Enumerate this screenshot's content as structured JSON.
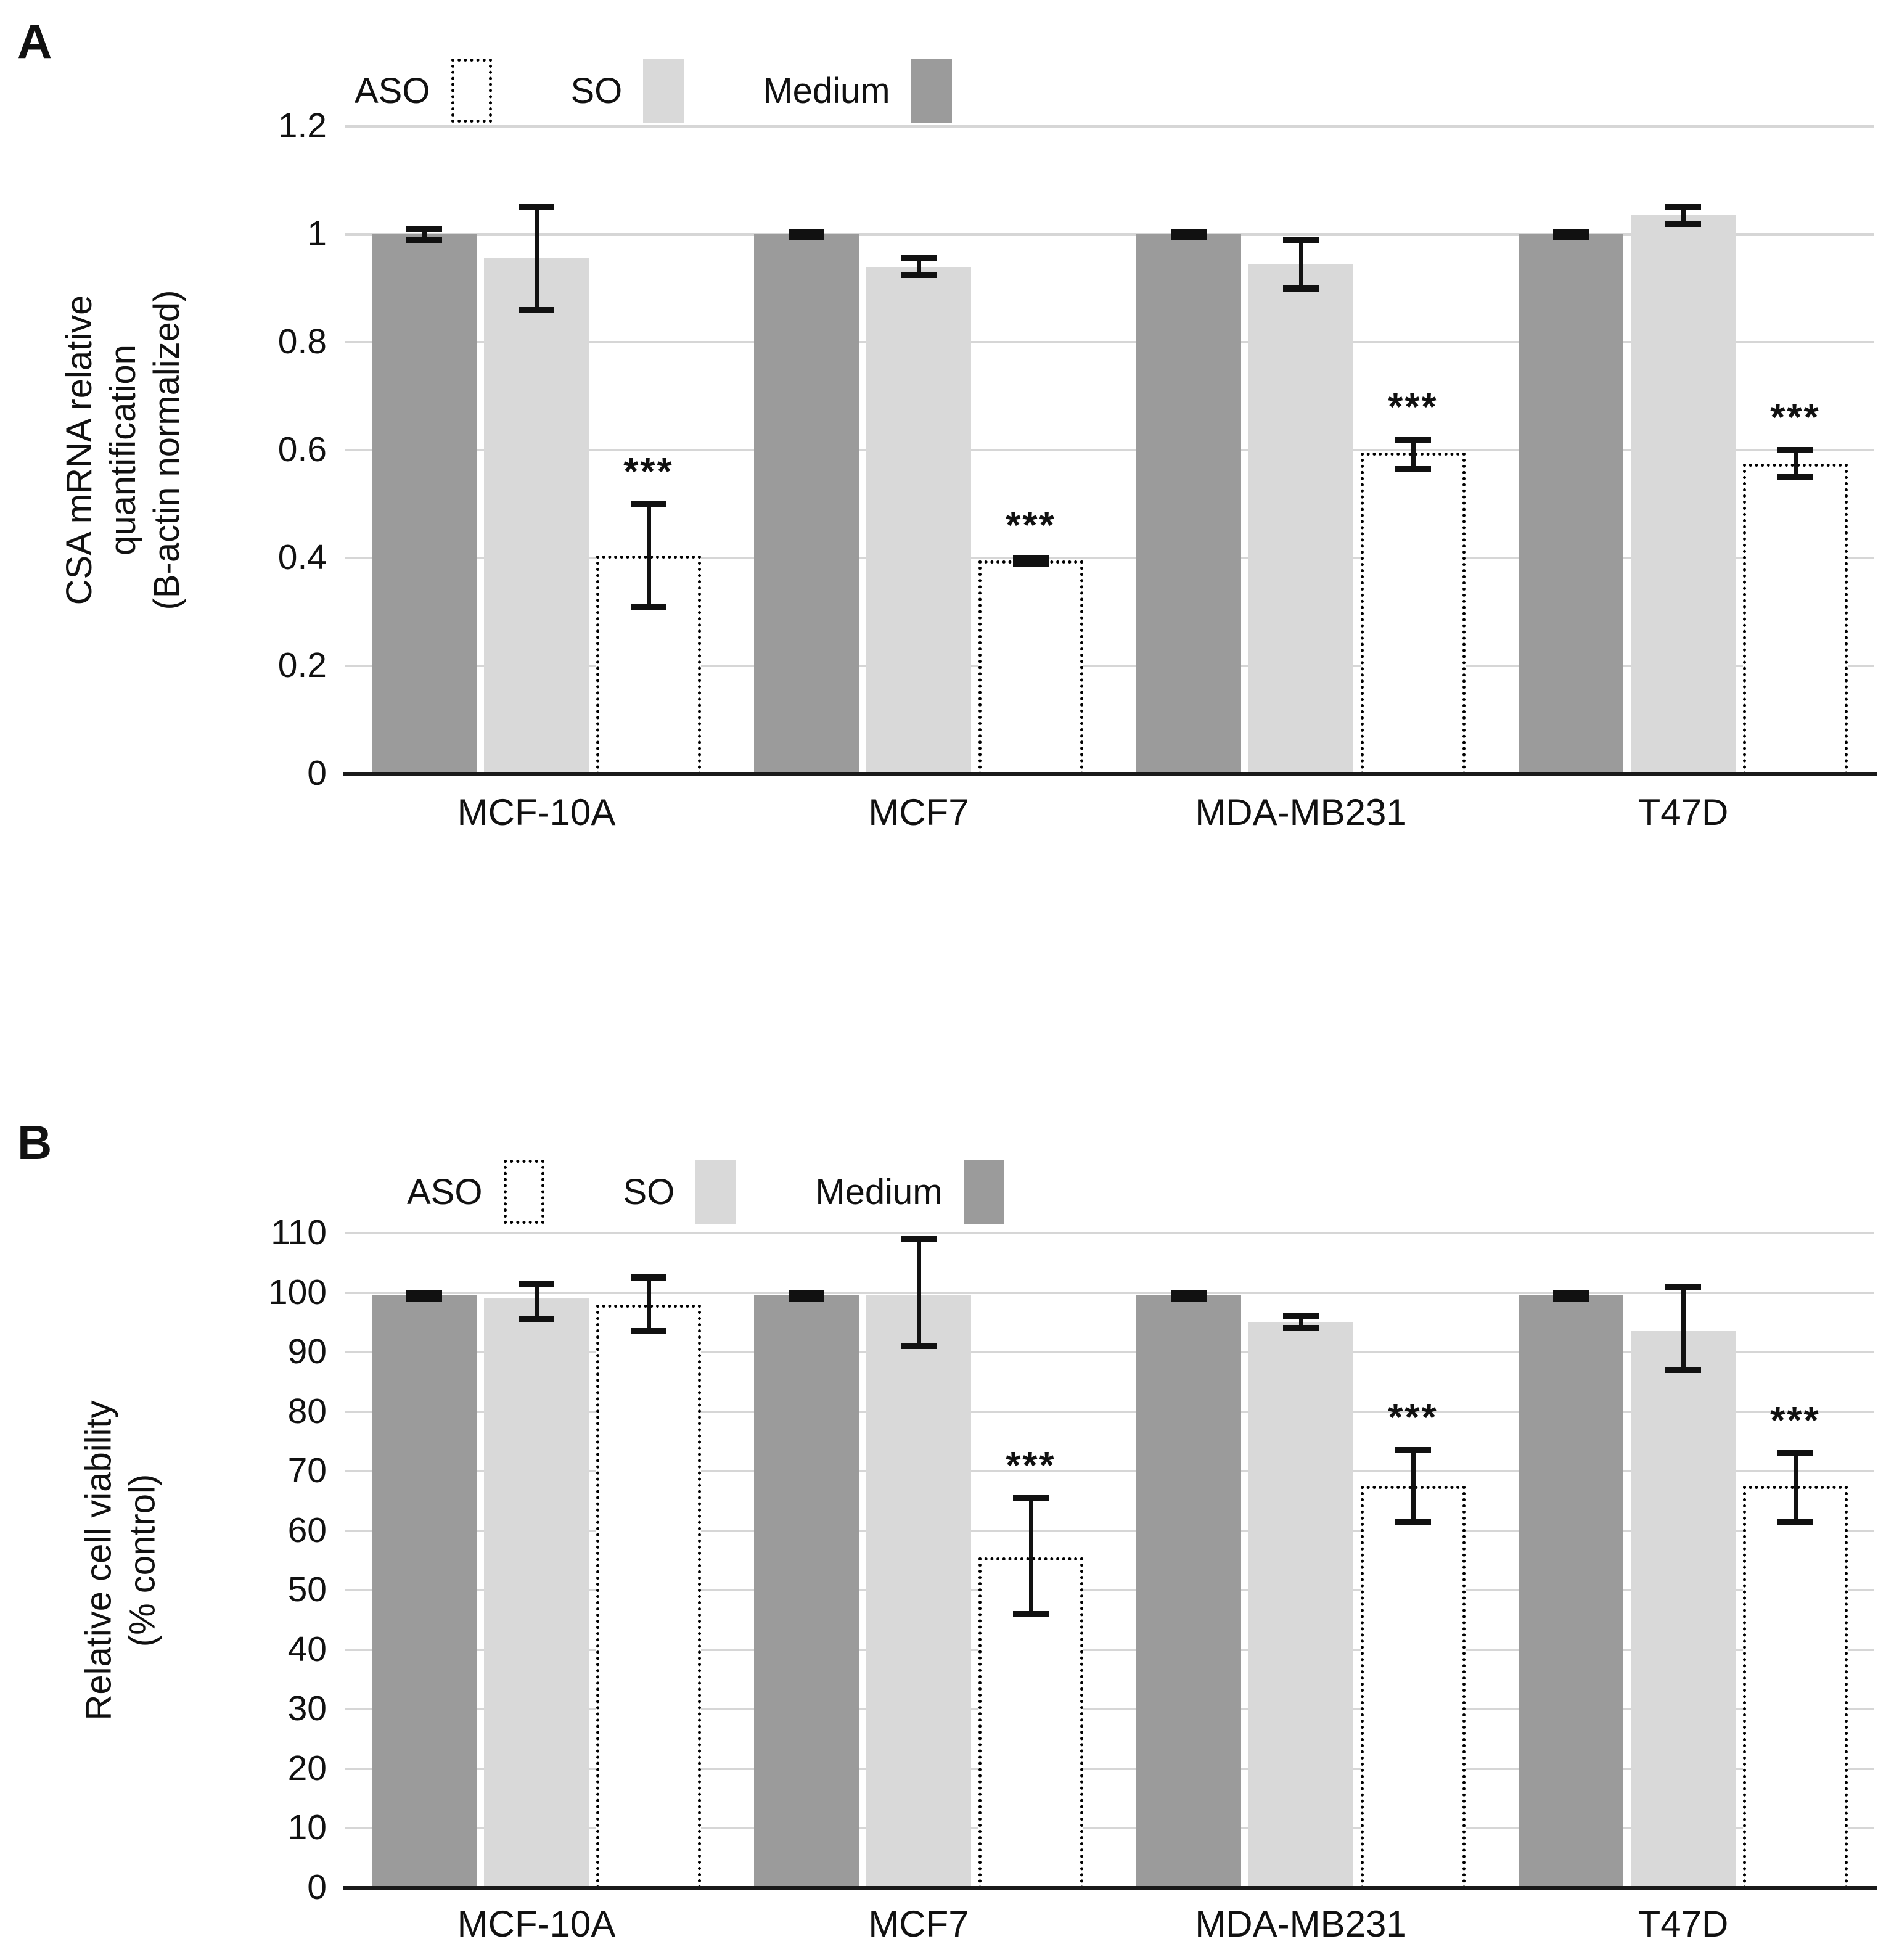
{
  "colors": {
    "dark_gray": "#9b9b9b",
    "light_gray": "#d9d9d9",
    "outline": "#000000",
    "gridline": "#d6d6d6",
    "axis": "#1a1a1a",
    "text": "#111111",
    "background": "#ffffff"
  },
  "chart_data": [
    {
      "type": "bar",
      "panel_label": "A",
      "title": "",
      "categories": [
        "MCF-10A",
        "MCF7",
        "MDA-MB231",
        "T47D"
      ],
      "legend_order": [
        "ASO",
        "SO",
        "Medium"
      ],
      "bar_order": [
        "Medium",
        "SO",
        "ASO"
      ],
      "ylabel_lines": [
        "CSA mRNA relative",
        "quantification",
        "(B-actin normalized)"
      ],
      "ylim": [
        0,
        1.2
      ],
      "yticks": [
        0,
        0.2,
        0.4,
        0.6,
        0.8,
        1,
        1.2
      ],
      "ytick_labels": [
        "0",
        "0.2",
        "0.4",
        "0.6",
        "0.8",
        "1",
        "1.2"
      ],
      "grid": true,
      "legend_position": "top",
      "series": [
        {
          "name": "Medium",
          "style": "dark-gray",
          "values": [
            1.0,
            1.0,
            1.0,
            1.0
          ],
          "error_low": [
            0.99,
            0.995,
            0.995,
            0.995
          ],
          "error_high": [
            1.01,
            1.005,
            1.005,
            1.005
          ],
          "significance": [
            "",
            "",
            "",
            ""
          ]
        },
        {
          "name": "SO",
          "style": "light-gray",
          "values": [
            0.955,
            0.94,
            0.945,
            1.035
          ],
          "error_low": [
            0.86,
            0.925,
            0.9,
            1.02
          ],
          "error_high": [
            1.05,
            0.955,
            0.99,
            1.05
          ],
          "significance": [
            "",
            "",
            "",
            ""
          ]
        },
        {
          "name": "ASO",
          "style": "dotted-outline",
          "values": [
            0.405,
            0.395,
            0.595,
            0.575
          ],
          "error_low": [
            0.31,
            0.39,
            0.565,
            0.55
          ],
          "error_high": [
            0.5,
            0.4,
            0.62,
            0.6
          ],
          "significance": [
            "***",
            "***",
            "***",
            "***"
          ]
        }
      ]
    },
    {
      "type": "bar",
      "panel_label": "B",
      "title": "",
      "categories": [
        "MCF-10A",
        "MCF7",
        "MDA-MB231",
        "T47D"
      ],
      "legend_order": [
        "ASO",
        "SO",
        "Medium"
      ],
      "bar_order": [
        "Medium",
        "SO",
        "ASO"
      ],
      "ylabel_lines": [
        "Relative cell viability",
        "(% control)"
      ],
      "ylim": [
        0,
        110
      ],
      "yticks": [
        0,
        10,
        20,
        30,
        40,
        50,
        60,
        70,
        80,
        90,
        100,
        110
      ],
      "ytick_labels": [
        "0",
        "10",
        "20",
        "30",
        "40",
        "50",
        "60",
        "70",
        "80",
        "90",
        "100",
        "110"
      ],
      "grid": true,
      "legend_position": "top",
      "series": [
        {
          "name": "Medium",
          "style": "dark-gray",
          "values": [
            99.5,
            99.5,
            99.5,
            99.5
          ],
          "error_low": [
            99,
            99,
            99,
            99
          ],
          "error_high": [
            100,
            100,
            100,
            100
          ],
          "significance": [
            "",
            "",
            "",
            ""
          ]
        },
        {
          "name": "SO",
          "style": "light-gray",
          "values": [
            99,
            99.5,
            95,
            93.5
          ],
          "error_low": [
            95.5,
            91,
            94,
            87
          ],
          "error_high": [
            101.5,
            109,
            96,
            101
          ],
          "significance": [
            "",
            "",
            "",
            ""
          ]
        },
        {
          "name": "ASO",
          "style": "dotted-outline",
          "values": [
            98,
            55.5,
            67.5,
            67.5
          ],
          "error_low": [
            93.5,
            46,
            61.5,
            61.5
          ],
          "error_high": [
            102.5,
            65.5,
            73.5,
            73
          ],
          "significance": [
            "",
            "***",
            "***",
            "***"
          ]
        }
      ]
    }
  ]
}
